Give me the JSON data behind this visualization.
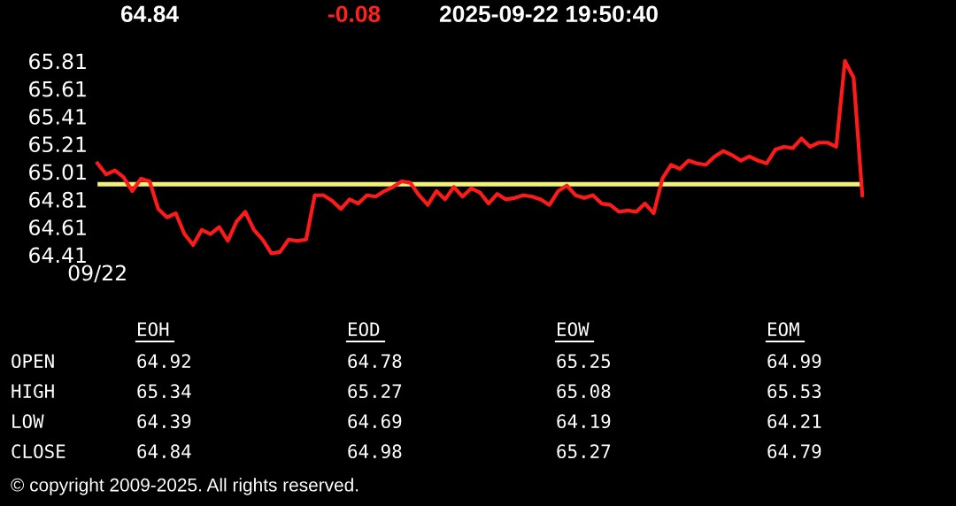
{
  "chart_data": {
    "type": "line",
    "title": "64.84",
    "subtitle": "-0.08",
    "annotations": [
      "2025-09-22 19:50:40",
      "EOH",
      "EOD",
      "EOW",
      "EOM",
      "OPEN",
      "64.92",
      "64.78",
      "65.25",
      "64.99",
      "HIGH",
      "65.34",
      "65.27",
      "65.08",
      "65.53",
      "LOW",
      "64.39",
      "64.69",
      "64.19",
      "64.21",
      "CLOSE",
      "64.84",
      "64.98",
      "65.27",
      "64.79",
      "© copyright 2009-2025. All rights reserved."
    ],
    "categories": [
      "09/22",
      null,
      null,
      null,
      null,
      null,
      null,
      null,
      null,
      null,
      null,
      null,
      null,
      null,
      null,
      null,
      null,
      null,
      null,
      null,
      null,
      null,
      null,
      null,
      null,
      null,
      null,
      null,
      null,
      null,
      null,
      null,
      null,
      null,
      null,
      null,
      null,
      null,
      null,
      null,
      null,
      null,
      null,
      null,
      null,
      null,
      null,
      null,
      null,
      null,
      null,
      null,
      null,
      null,
      null,
      null,
      null,
      null,
      null,
      null,
      null,
      null,
      null,
      null,
      null,
      null,
      null,
      null,
      null,
      null,
      null,
      null,
      null,
      null,
      null,
      null,
      null,
      null,
      null,
      null,
      null,
      null,
      null,
      null,
      null,
      null,
      null,
      null,
      null
    ],
    "series": [
      {
        "color": "#ff1a1a",
        "values": [
          65.07,
          64.99,
          65.02,
          64.97,
          64.87,
          64.96,
          64.94,
          64.74,
          64.68,
          64.71,
          64.56,
          64.48,
          64.59,
          64.56,
          64.61,
          64.51,
          64.65,
          64.72,
          64.59,
          64.52,
          64.42,
          64.43,
          64.52,
          64.51,
          64.52,
          64.84,
          64.84,
          64.8,
          64.74,
          64.81,
          64.78,
          64.84,
          64.83,
          64.87,
          64.9,
          64.94,
          64.93,
          64.84,
          64.77,
          64.87,
          64.81,
          64.9,
          64.83,
          64.89,
          64.86,
          64.78,
          64.85,
          64.81,
          64.82,
          64.84,
          64.83,
          64.81,
          64.77,
          64.87,
          64.91,
          64.84,
          64.82,
          64.84,
          64.78,
          64.77,
          64.72,
          64.73,
          64.72,
          64.78,
          64.71,
          64.96,
          65.06,
          65.03,
          65.09,
          65.07,
          65.06,
          65.12,
          65.16,
          65.13,
          65.09,
          65.12,
          65.09,
          65.07,
          65.17,
          65.19,
          65.18,
          65.25,
          65.19,
          65.22,
          65.22,
          65.19,
          65.81,
          65.69,
          64.84
        ]
      }
    ],
    "ylim": [
      64.41,
      65.81
    ],
    "yticks": [
      64.41,
      64.61,
      64.81,
      65.01,
      65.21,
      65.41,
      65.61,
      65.81
    ],
    "ref_lines": [
      {
        "axis": "y",
        "value": 64.92,
        "color": "#f2f27a"
      }
    ],
    "grid": false,
    "legend": false
  }
}
